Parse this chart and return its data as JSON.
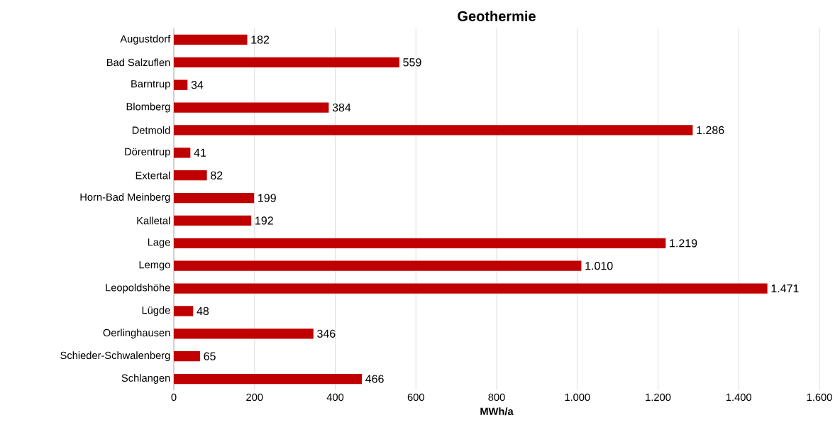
{
  "chart_data": {
    "type": "bar",
    "orientation": "horizontal",
    "title": "Geothermie",
    "xlabel": "MWh/a",
    "categories": [
      "Augustdorf",
      "Bad Salzuflen",
      "Barntrup",
      "Blomberg",
      "Detmold",
      "Dörentrup",
      "Extertal",
      "Horn-Bad Meinberg",
      "Kalletal",
      "Lage",
      "Lemgo",
      "Leopoldshöhe",
      "Lügde",
      "Oerlinghausen",
      "Schieder-Schwalenberg",
      "Schlangen"
    ],
    "values": [
      182,
      559,
      34,
      384,
      1286,
      41,
      82,
      199,
      192,
      1219,
      1010,
      1471,
      48,
      346,
      65,
      466
    ],
    "value_labels": [
      "182",
      "559",
      "34",
      "384",
      "1.286",
      "41",
      "82",
      "199",
      "192",
      "1.219",
      "1.010",
      "1.471",
      "48",
      "346",
      "65",
      "466"
    ],
    "color": "#c00000",
    "xlim": [
      0,
      1600
    ],
    "xticks": [
      0,
      200,
      400,
      600,
      800,
      {
        "value": 1000,
        "label": "1.000"
      },
      {
        "value": 1200,
        "label": "1.200"
      },
      {
        "value": 1400,
        "label": "1.400"
      },
      {
        "value": 1600,
        "label": "1.600"
      }
    ],
    "grid": "x"
  }
}
